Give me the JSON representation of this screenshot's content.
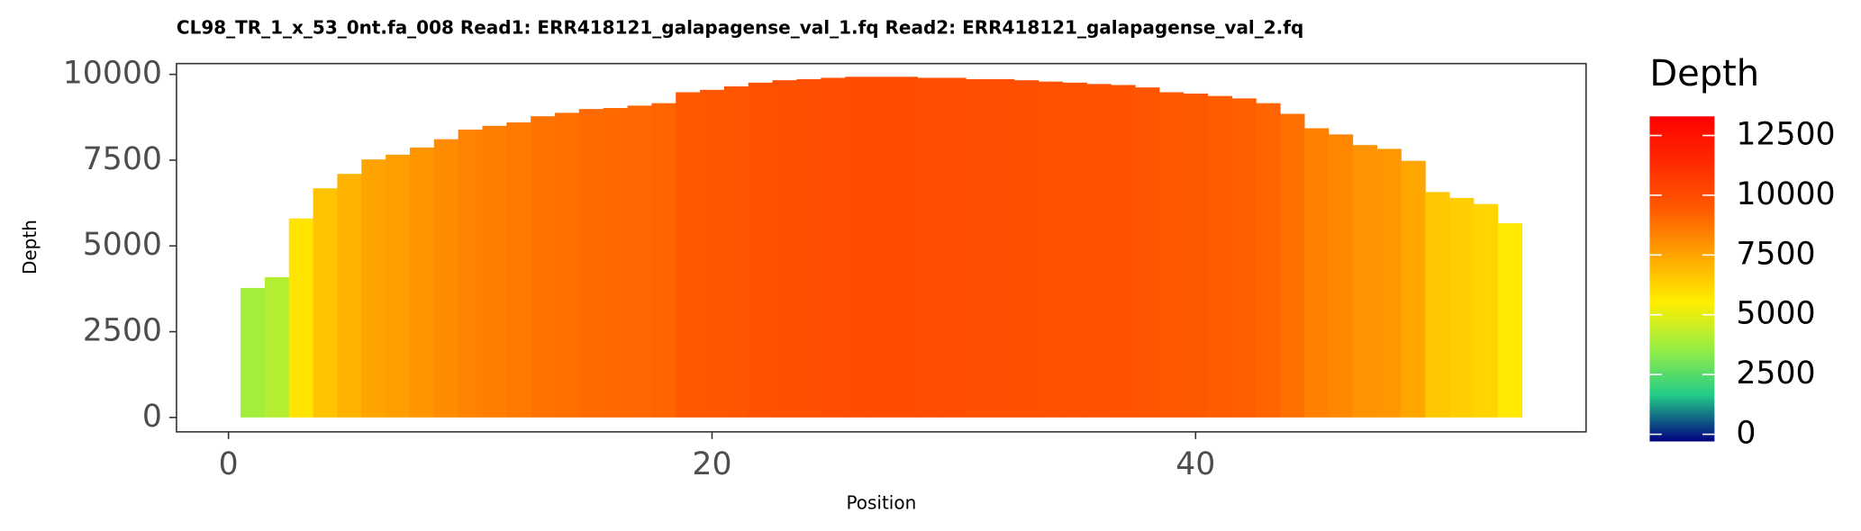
{
  "chart_data": {
    "type": "bar",
    "title": "CL98_TR_1_x_53_0nt.fa_008   Read1: ERR418121_galapagense_val_1.fq   Read2: ERR418121_galapagense_val_2.fq",
    "x_label": "Position",
    "y_label": "Depth",
    "x": [
      1,
      2,
      3,
      4,
      5,
      6,
      7,
      8,
      9,
      10,
      11,
      12,
      13,
      14,
      15,
      16,
      17,
      18,
      19,
      20,
      21,
      22,
      23,
      24,
      25,
      26,
      27,
      28,
      29,
      30,
      31,
      32,
      33,
      34,
      35,
      36,
      37,
      38,
      39,
      40,
      41,
      42,
      43,
      44,
      45,
      46,
      47,
      48,
      49,
      50,
      51,
      52,
      53
    ],
    "values": [
      3776,
      4090,
      5800,
      6680,
      7100,
      7520,
      7660,
      7870,
      8110,
      8390,
      8500,
      8600,
      8780,
      8880,
      8990,
      9020,
      9090,
      9160,
      9480,
      9550,
      9650,
      9760,
      9830,
      9860,
      9900,
      9930,
      9930,
      9930,
      9900,
      9900,
      9860,
      9860,
      9830,
      9790,
      9760,
      9720,
      9690,
      9620,
      9480,
      9440,
      9370,
      9300,
      9160,
      8850,
      8430,
      8250,
      7940,
      7830,
      7480,
      6570,
      6400,
      6220,
      5660
    ],
    "xlim": [
      -2.15,
      56.15
    ],
    "xticks": [
      0,
      20,
      40
    ],
    "ylim": [
      -420,
      10315
    ],
    "yticks": [
      0,
      2500,
      5000,
      7500,
      10000
    ],
    "legend_title": "Depth",
    "colorlim": [
      -300,
      13300
    ],
    "colorticks": [
      0,
      2500,
      5000,
      7500,
      10000,
      12500
    ],
    "colorscale": [
      "#000080",
      "#22cc88",
      "#99ee44",
      "#ffee00",
      "#ffa500",
      "#ff5a00",
      "#ff2a00",
      "#ff0000"
    ]
  }
}
